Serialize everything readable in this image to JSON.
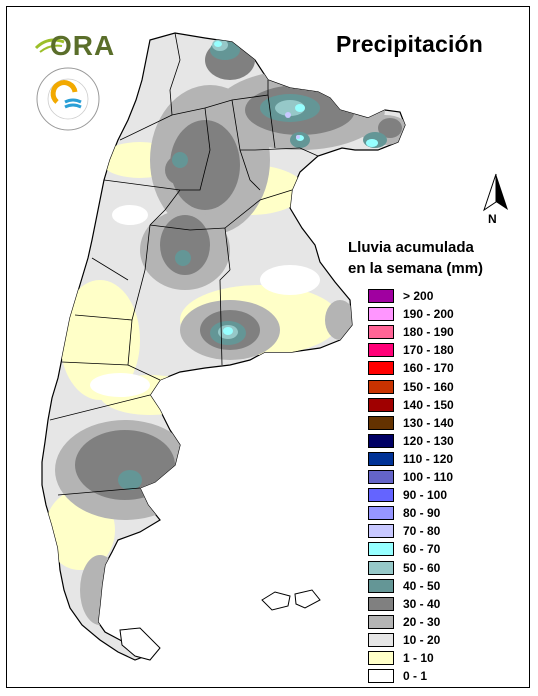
{
  "title": "Precipitación",
  "logos": {
    "ora": {
      "text": "ORA",
      "color": "#5a6e2a",
      "leaf_color": "#9cbf2a"
    },
    "smn": {
      "ring_text_top": "SERVICIO METEOROLÓGICO NACIONAL",
      "ring_text_bottom": "ARGENTINA",
      "colors": [
        "#f2a900",
        "#2a9fd6"
      ]
    }
  },
  "compass_label": "N",
  "legend": {
    "title_line1": "Lluvia acumulada",
    "title_line2": "en la semana (mm)",
    "items": [
      {
        "label": "> 200",
        "color": "#a000a0"
      },
      {
        "label": "190 - 200",
        "color": "#ff96ff"
      },
      {
        "label": "180 - 190",
        "color": "#ff6496"
      },
      {
        "label": "170 - 180",
        "color": "#ff0078"
      },
      {
        "label": "160 - 170",
        "color": "#ff0000"
      },
      {
        "label": "150 - 160",
        "color": "#c83200"
      },
      {
        "label": "140 - 150",
        "color": "#a00000"
      },
      {
        "label": "130 - 140",
        "color": "#643200"
      },
      {
        "label": "120 - 130",
        "color": "#000064"
      },
      {
        "label": "110 - 120",
        "color": "#003296"
      },
      {
        "label": "100 - 110",
        "color": "#6464c8"
      },
      {
        "label": "90 - 100",
        "color": "#6464ff"
      },
      {
        "label": "80 - 90",
        "color": "#9696ff"
      },
      {
        "label": "70 - 80",
        "color": "#c8c8ff"
      },
      {
        "label": "60 - 70",
        "color": "#96ffff"
      },
      {
        "label": "50 - 60",
        "color": "#96c8c8"
      },
      {
        "label": "40 - 50",
        "color": "#649696"
      },
      {
        "label": "30 - 40",
        "color": "#808080"
      },
      {
        "label": "20 - 30",
        "color": "#b4b4b4"
      },
      {
        "label": "10 - 20",
        "color": "#e6e6e6"
      },
      {
        "label": "1 - 10",
        "color": "#ffffc8"
      },
      {
        "label": "0 - 1",
        "color": "#ffffff"
      }
    ]
  }
}
